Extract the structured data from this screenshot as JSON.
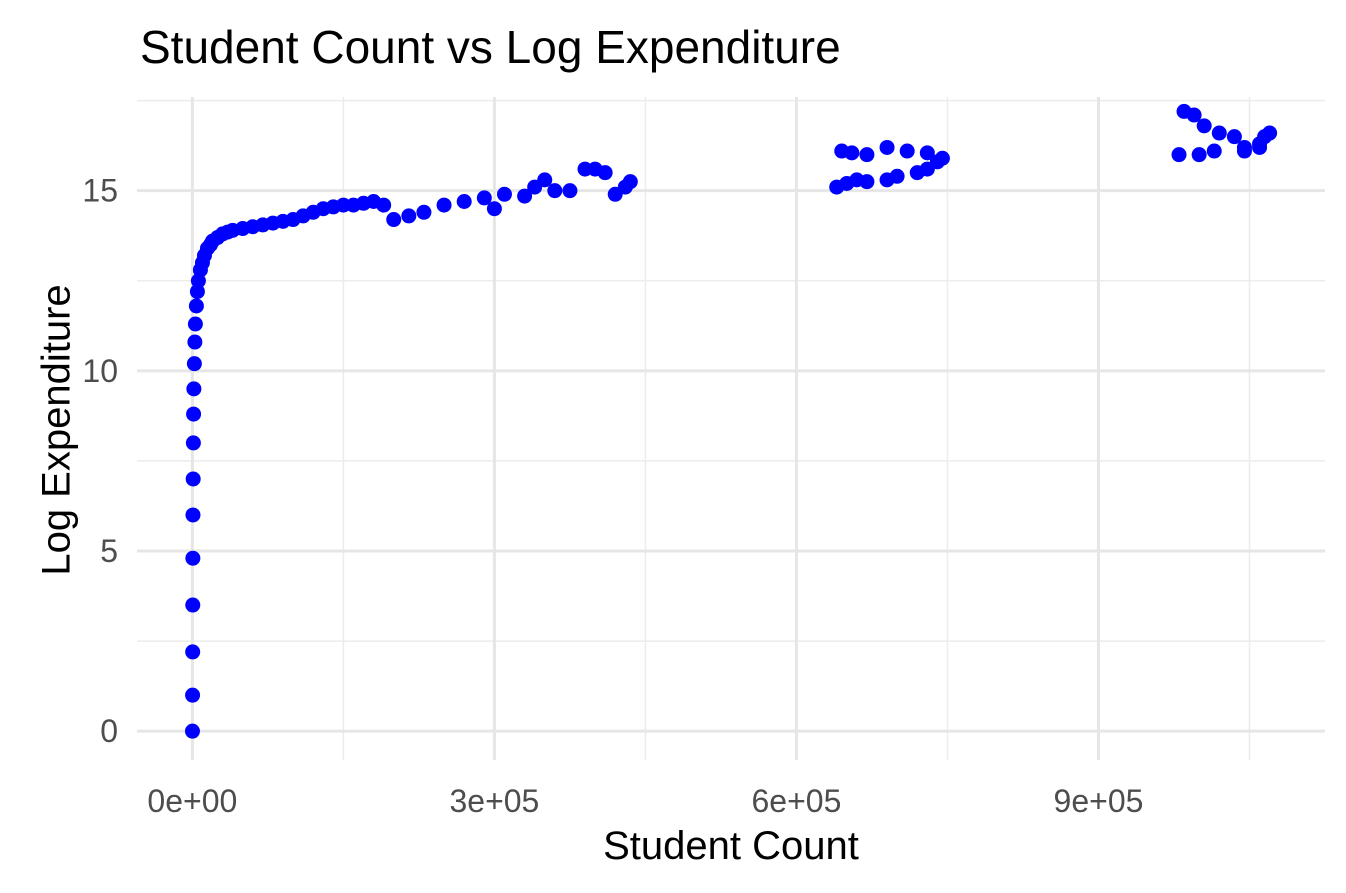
{
  "chart_data": {
    "type": "scatter",
    "title": "Student Count vs Log Expenditure",
    "xlabel": "Student Count",
    "ylabel": "Log Expenditure",
    "xlim": [
      -55000,
      1125000
    ],
    "ylim": [
      -0.8,
      17.6
    ],
    "x_ticks": [
      0,
      300000,
      600000,
      900000
    ],
    "x_tick_labels": [
      "0e+00",
      "3e+05",
      "6e+05",
      "9e+05"
    ],
    "y_ticks": [
      0,
      5,
      10,
      15
    ],
    "y_tick_labels": [
      "0",
      "5",
      "10",
      "15"
    ],
    "grid": true,
    "point_color": "#0000ff",
    "series": [
      {
        "x": [
          100,
          200,
          300,
          400,
          500,
          600,
          800,
          1000,
          1200,
          1500,
          2000,
          2500,
          3000,
          4000,
          5000,
          6000,
          8000,
          10000,
          12000,
          15000,
          18000,
          20000,
          25000,
          30000,
          35000,
          40000,
          50000,
          60000,
          70000,
          80000,
          90000,
          100000,
          110000,
          120000,
          130000,
          140000,
          150000,
          160000,
          170000,
          180000,
          190000,
          200000,
          215000,
          230000,
          250000,
          270000,
          290000,
          300000,
          310000,
          330000,
          340000,
          350000,
          360000,
          375000,
          390000,
          400000,
          410000,
          420000,
          430000,
          435000,
          640000,
          650000,
          660000,
          670000,
          690000,
          700000,
          720000,
          730000,
          740000,
          745000,
          645000,
          655000,
          670000,
          690000,
          710000,
          730000,
          985000,
          995000,
          1005000,
          1020000,
          1035000,
          1045000,
          1060000,
          1065000,
          1070000,
          980000,
          1000000,
          1015000,
          1045000,
          1060000
        ],
        "y": [
          0.0,
          1.0,
          2.2,
          3.5,
          4.8,
          6.0,
          7.0,
          8.0,
          8.8,
          9.5,
          10.2,
          10.8,
          11.3,
          11.8,
          12.2,
          12.5,
          12.8,
          13.0,
          13.2,
          13.4,
          13.5,
          13.6,
          13.7,
          13.8,
          13.85,
          13.9,
          13.95,
          14.0,
          14.05,
          14.1,
          14.15,
          14.2,
          14.3,
          14.4,
          14.5,
          14.55,
          14.6,
          14.6,
          14.65,
          14.7,
          14.6,
          14.2,
          14.3,
          14.4,
          14.6,
          14.7,
          14.8,
          14.5,
          14.9,
          14.85,
          15.1,
          15.3,
          15.0,
          15.0,
          15.6,
          15.6,
          15.5,
          14.9,
          15.1,
          15.25,
          15.1,
          15.2,
          15.3,
          15.25,
          15.3,
          15.4,
          15.5,
          15.6,
          15.8,
          15.9,
          16.1,
          16.05,
          16.0,
          16.2,
          16.1,
          16.05,
          17.2,
          17.1,
          16.8,
          16.6,
          16.5,
          16.2,
          16.3,
          16.5,
          16.6,
          16.0,
          16.0,
          16.1,
          16.1,
          16.2
        ]
      }
    ]
  }
}
